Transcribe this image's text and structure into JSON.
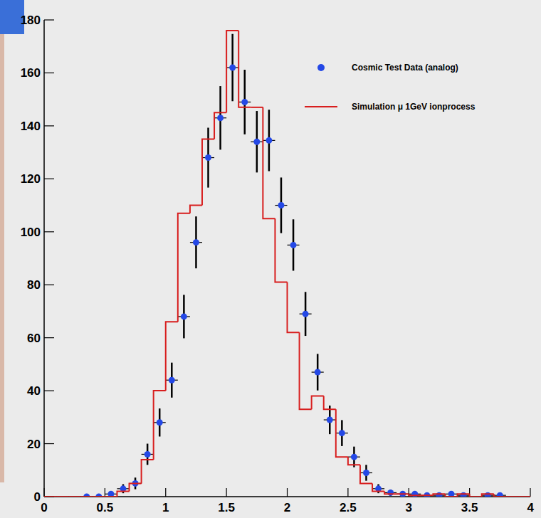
{
  "chart_data": {
    "type": "histogram",
    "xlim": [
      0,
      4
    ],
    "ylim": [
      0,
      180
    ],
    "xticks": [
      0,
      0.5,
      1,
      1.5,
      2,
      2.5,
      3,
      3.5,
      4
    ],
    "yticks": [
      0,
      20,
      40,
      60,
      80,
      100,
      120,
      140,
      160,
      180
    ],
    "legend": "top-right",
    "series": [
      {
        "name": "Cosmic Test Data (analog)",
        "type": "scatter",
        "marker": "circle",
        "color": "#2448e6",
        "x": [
          0.35,
          0.45,
          0.55,
          0.65,
          0.75,
          0.85,
          0.95,
          1.05,
          1.15,
          1.25,
          1.35,
          1.45,
          1.55,
          1.65,
          1.75,
          1.85,
          1.95,
          2.05,
          2.15,
          2.25,
          2.35,
          2.45,
          2.55,
          2.65,
          2.75,
          2.85,
          2.95,
          3.05,
          3.15,
          3.25,
          3.35,
          3.45,
          3.65,
          3.75
        ],
        "values": [
          0,
          0,
          1,
          3,
          5,
          16,
          28,
          44,
          68,
          96,
          128,
          143,
          162,
          149,
          134,
          134.5,
          110,
          95,
          69,
          47,
          29,
          24,
          15,
          9,
          3,
          1.5,
          1,
          1,
          0.5,
          0.5,
          1,
          0.5,
          0.5,
          0.5
        ],
        "errors": [
          0,
          0,
          1,
          1.7,
          2.2,
          4,
          5.3,
          6.6,
          8.2,
          9.8,
          11.3,
          12,
          12.7,
          12.2,
          11.6,
          11.6,
          10.5,
          9.7,
          8.3,
          6.9,
          5.4,
          4.9,
          3.9,
          3,
          1.7,
          1.2,
          1,
          1,
          0.7,
          0.7,
          1,
          0.7,
          0.7,
          0.7
        ],
        "x_error": 0.05
      },
      {
        "name": "Simulation μ 1GeV ionprocess",
        "type": "step",
        "line_style": "solid",
        "color": "#d81e1e",
        "bins": [
          0,
          0.1,
          0.2,
          0.3,
          0.4,
          0.5,
          0.6,
          0.7,
          0.8,
          0.9,
          1.0,
          1.1,
          1.2,
          1.3,
          1.4,
          1.5,
          1.6,
          1.7,
          1.8,
          1.9,
          2.0,
          2.1,
          2.2,
          2.3,
          2.4,
          2.5,
          2.6,
          2.7,
          2.8,
          2.9,
          3.0,
          3.1,
          3.2,
          3.3,
          3.4,
          3.5,
          3.6,
          3.7,
          3.8,
          3.9,
          4.0
        ],
        "values": [
          0,
          0,
          0,
          0,
          0,
          0,
          2,
          5,
          14,
          40,
          66,
          107,
          110,
          135,
          145,
          176,
          147,
          147,
          105,
          81,
          62,
          33,
          38,
          33,
          15,
          12,
          5,
          2,
          1,
          1,
          0.5,
          0.5,
          1,
          0,
          1,
          0,
          1,
          0,
          0,
          0
        ]
      }
    ]
  }
}
